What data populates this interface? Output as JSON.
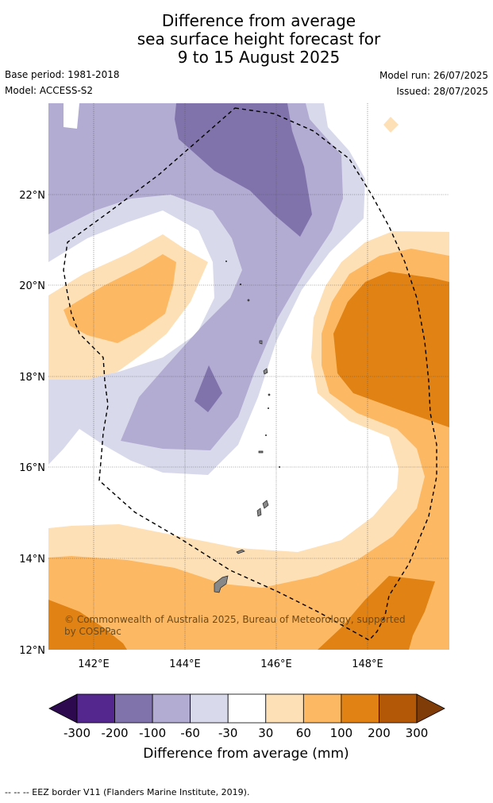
{
  "title": {
    "line1": "Difference from average",
    "line2": "sea surface height forecast for",
    "line3": "9 to 15 August 2025"
  },
  "meta": {
    "base_period": "Base period: 1981-2018",
    "model": "Model: ACCESS-S2",
    "model_run": "Model run: 26/07/2025",
    "issued": "Issued: 28/07/2025"
  },
  "map": {
    "lat_labels": [
      "22°N",
      "20°N",
      "18°N",
      "16°N",
      "14°N",
      "12°N"
    ],
    "lon_labels": [
      "142°E",
      "144°E",
      "146°E",
      "148°E"
    ],
    "copyright_line1": "© Commonwealth of Australia 2025, Bureau of Meteorology, supported",
    "copyright_line2": "by COSPPac"
  },
  "legend": {
    "ticks": [
      "-300",
      "-200",
      "-100",
      "-60",
      "-30",
      "30",
      "60",
      "100",
      "200",
      "300"
    ],
    "label": "Difference from average (mm)",
    "colors": [
      "#2d0a4f",
      "#54278f",
      "#8073ac",
      "#b2abd2",
      "#d8daeb",
      "#ffffff",
      "#fee0b6",
      "#fdb863",
      "#e08214",
      "#b35806",
      "#7f3b08"
    ]
  },
  "footer": "--  --  -- EEZ border V11 (Flanders Marine Institute, 2019)."
}
